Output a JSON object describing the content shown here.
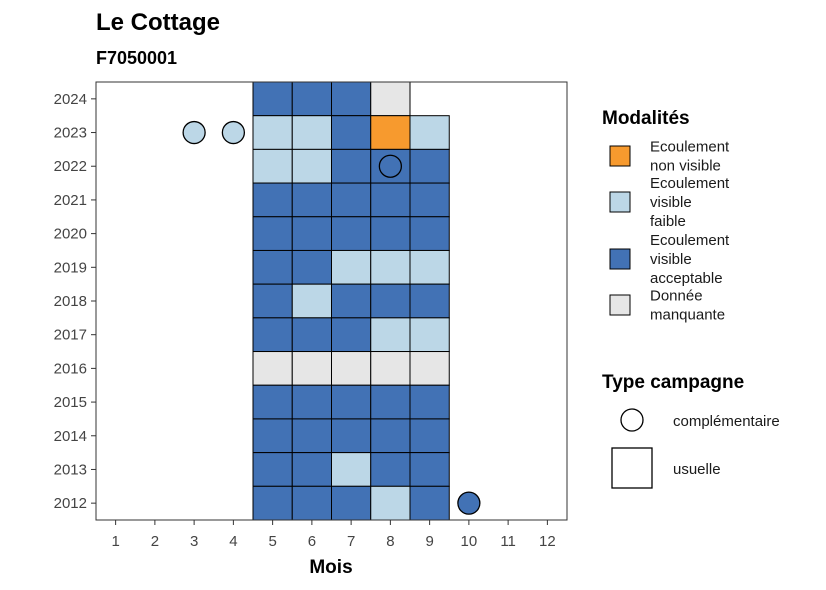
{
  "chart_data": {
    "type": "heatmap",
    "title": "Le Cottage",
    "subtitle": "F7050001",
    "xlabel": "Mois",
    "ylabel": "",
    "x_ticks": [
      "1",
      "2",
      "3",
      "4",
      "5",
      "6",
      "7",
      "8",
      "9",
      "10",
      "11",
      "12"
    ],
    "y_ticks": [
      "2012",
      "2013",
      "2014",
      "2015",
      "2016",
      "2017",
      "2018",
      "2019",
      "2020",
      "2021",
      "2022",
      "2023",
      "2024"
    ],
    "xlim": [
      0.5,
      12.5
    ],
    "ylim": [
      2011.5,
      2024.5
    ],
    "grid": false,
    "legend_position": "right",
    "colors": {
      "orange": "#F79A2E",
      "light": "#BCD7E7",
      "dark": "#4272B5",
      "grey": "#E6E6E6"
    },
    "legend_modalites": {
      "title": "Modalités",
      "items": [
        {
          "key": "orange",
          "lines": [
            "Ecoulement",
            "non visible"
          ]
        },
        {
          "key": "light",
          "lines": [
            "Ecoulement",
            "visible",
            "faible"
          ]
        },
        {
          "key": "dark",
          "lines": [
            "Ecoulement",
            "visible",
            "acceptable"
          ]
        },
        {
          "key": "grey",
          "lines": [
            "Donnée",
            "manquante"
          ]
        }
      ]
    },
    "legend_campagne": {
      "title": "Type campagne",
      "items": [
        {
          "shape": "circle",
          "label": "complémentaire"
        },
        {
          "shape": "square",
          "label": "usuelle"
        }
      ]
    },
    "usual_campaigns": [
      {
        "year": 2024,
        "month": 5,
        "value": "dark"
      },
      {
        "year": 2024,
        "month": 6,
        "value": "dark"
      },
      {
        "year": 2024,
        "month": 7,
        "value": "dark"
      },
      {
        "year": 2024,
        "month": 8,
        "value": "grey"
      },
      {
        "year": 2023,
        "month": 5,
        "value": "light"
      },
      {
        "year": 2023,
        "month": 6,
        "value": "light"
      },
      {
        "year": 2023,
        "month": 7,
        "value": "dark"
      },
      {
        "year": 2023,
        "month": 8,
        "value": "orange"
      },
      {
        "year": 2023,
        "month": 9,
        "value": "light"
      },
      {
        "year": 2022,
        "month": 5,
        "value": "light"
      },
      {
        "year": 2022,
        "month": 6,
        "value": "light"
      },
      {
        "year": 2022,
        "month": 7,
        "value": "dark"
      },
      {
        "year": 2022,
        "month": 8,
        "value": "dark"
      },
      {
        "year": 2022,
        "month": 9,
        "value": "dark"
      },
      {
        "year": 2021,
        "month": 5,
        "value": "dark"
      },
      {
        "year": 2021,
        "month": 6,
        "value": "dark"
      },
      {
        "year": 2021,
        "month": 7,
        "value": "dark"
      },
      {
        "year": 2021,
        "month": 8,
        "value": "dark"
      },
      {
        "year": 2021,
        "month": 9,
        "value": "dark"
      },
      {
        "year": 2020,
        "month": 5,
        "value": "dark"
      },
      {
        "year": 2020,
        "month": 6,
        "value": "dark"
      },
      {
        "year": 2020,
        "month": 7,
        "value": "dark"
      },
      {
        "year": 2020,
        "month": 8,
        "value": "dark"
      },
      {
        "year": 2020,
        "month": 9,
        "value": "dark"
      },
      {
        "year": 2019,
        "month": 5,
        "value": "dark"
      },
      {
        "year": 2019,
        "month": 6,
        "value": "dark"
      },
      {
        "year": 2019,
        "month": 7,
        "value": "light"
      },
      {
        "year": 2019,
        "month": 8,
        "value": "light"
      },
      {
        "year": 2019,
        "month": 9,
        "value": "light"
      },
      {
        "year": 2018,
        "month": 5,
        "value": "dark"
      },
      {
        "year": 2018,
        "month": 6,
        "value": "light"
      },
      {
        "year": 2018,
        "month": 7,
        "value": "dark"
      },
      {
        "year": 2018,
        "month": 8,
        "value": "dark"
      },
      {
        "year": 2018,
        "month": 9,
        "value": "dark"
      },
      {
        "year": 2017,
        "month": 5,
        "value": "dark"
      },
      {
        "year": 2017,
        "month": 6,
        "value": "dark"
      },
      {
        "year": 2017,
        "month": 7,
        "value": "dark"
      },
      {
        "year": 2017,
        "month": 8,
        "value": "light"
      },
      {
        "year": 2017,
        "month": 9,
        "value": "light"
      },
      {
        "year": 2016,
        "month": 5,
        "value": "grey"
      },
      {
        "year": 2016,
        "month": 6,
        "value": "grey"
      },
      {
        "year": 2016,
        "month": 7,
        "value": "grey"
      },
      {
        "year": 2016,
        "month": 8,
        "value": "grey"
      },
      {
        "year": 2016,
        "month": 9,
        "value": "grey"
      },
      {
        "year": 2015,
        "month": 5,
        "value": "dark"
      },
      {
        "year": 2015,
        "month": 6,
        "value": "dark"
      },
      {
        "year": 2015,
        "month": 7,
        "value": "dark"
      },
      {
        "year": 2015,
        "month": 8,
        "value": "dark"
      },
      {
        "year": 2015,
        "month": 9,
        "value": "dark"
      },
      {
        "year": 2014,
        "month": 5,
        "value": "dark"
      },
      {
        "year": 2014,
        "month": 6,
        "value": "dark"
      },
      {
        "year": 2014,
        "month": 7,
        "value": "dark"
      },
      {
        "year": 2014,
        "month": 8,
        "value": "dark"
      },
      {
        "year": 2014,
        "month": 9,
        "value": "dark"
      },
      {
        "year": 2013,
        "month": 5,
        "value": "dark"
      },
      {
        "year": 2013,
        "month": 6,
        "value": "dark"
      },
      {
        "year": 2013,
        "month": 7,
        "value": "light"
      },
      {
        "year": 2013,
        "month": 8,
        "value": "dark"
      },
      {
        "year": 2013,
        "month": 9,
        "value": "dark"
      },
      {
        "year": 2012,
        "month": 5,
        "value": "dark"
      },
      {
        "year": 2012,
        "month": 6,
        "value": "dark"
      },
      {
        "year": 2012,
        "month": 7,
        "value": "dark"
      },
      {
        "year": 2012,
        "month": 8,
        "value": "light"
      },
      {
        "year": 2012,
        "month": 9,
        "value": "dark"
      }
    ],
    "complementary_campaigns": [
      {
        "year": 2023,
        "month": 3,
        "value": "light"
      },
      {
        "year": 2023,
        "month": 4,
        "value": "light"
      },
      {
        "year": 2022,
        "month": 8,
        "value": "dark"
      },
      {
        "year": 2012,
        "month": 10,
        "value": "dark"
      }
    ]
  }
}
